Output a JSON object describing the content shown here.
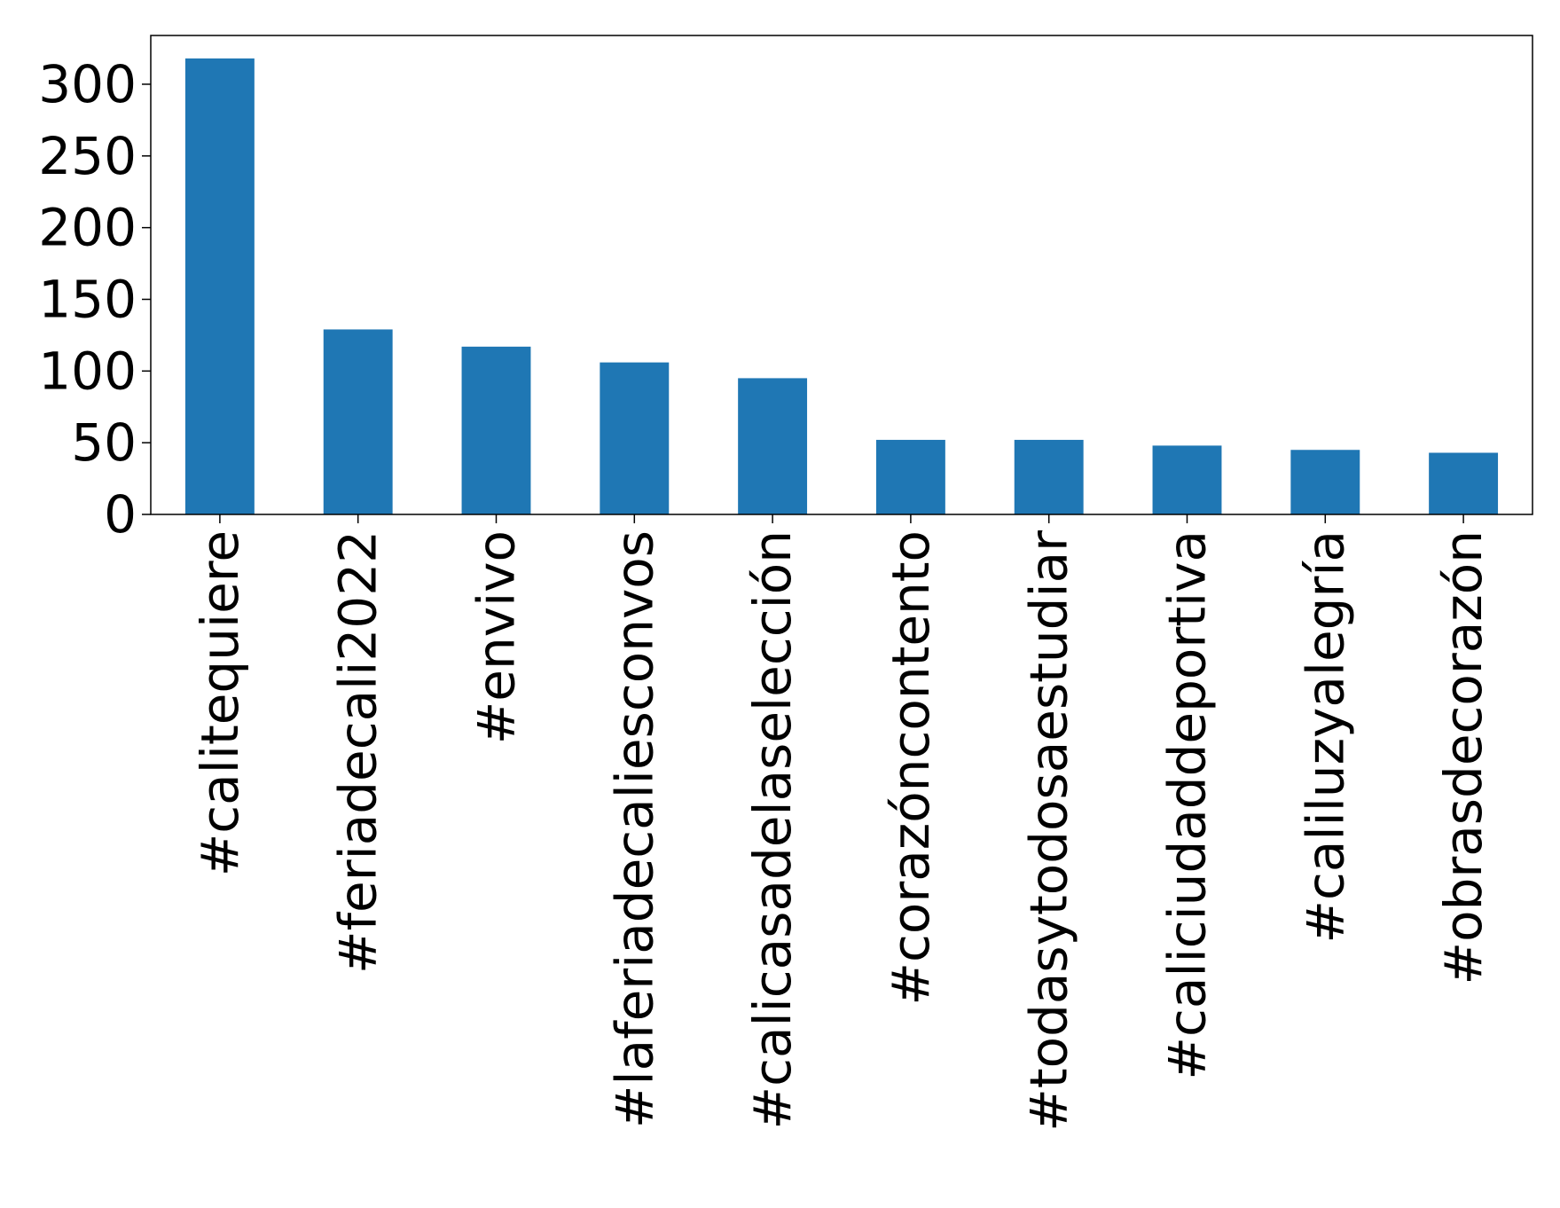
{
  "chart_data": {
    "type": "bar",
    "title": "",
    "xlabel": "",
    "ylabel": "",
    "categories": [
      "#calitequiere",
      "#feriadecali2022",
      "#envivo",
      "#laferiadecaliesconvos",
      "#calicasadelaselección",
      "#corazóncontento",
      "#todasytodosaestudiar",
      "#caliciudaddeportiva",
      "#caliluzyalegría",
      "#obrasdecorazón"
    ],
    "values": [
      318,
      129,
      117,
      106,
      95,
      52,
      52,
      48,
      45,
      43
    ],
    "ylim": [
      0,
      334
    ],
    "yticks": [
      0,
      50,
      100,
      150,
      200,
      250,
      300
    ],
    "bar_color": "#1f77b4",
    "grid": false,
    "legend": "none"
  }
}
